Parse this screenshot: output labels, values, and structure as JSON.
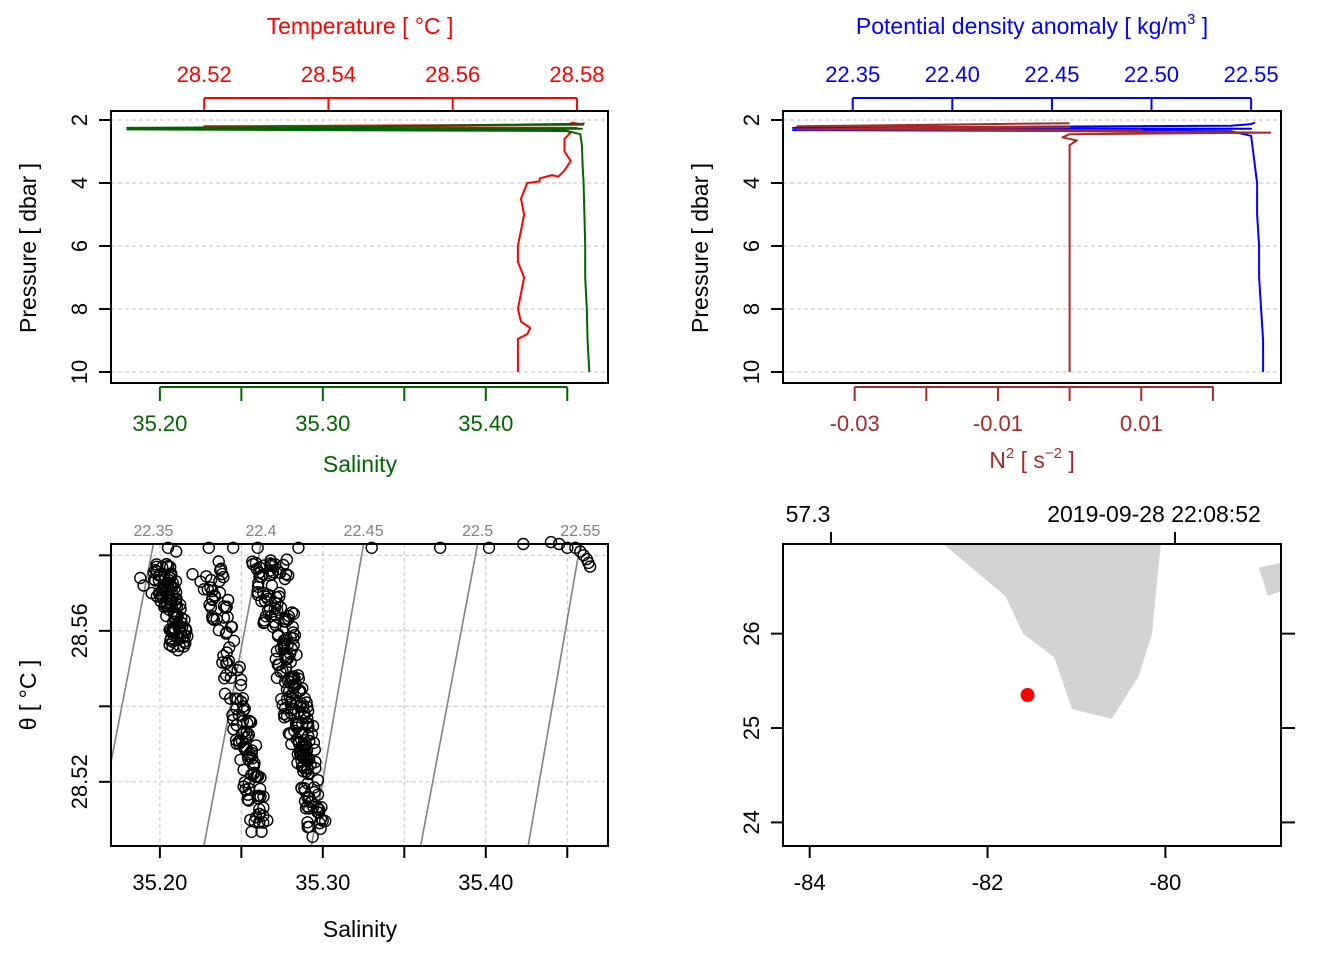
{
  "colors": {
    "temperature": "#ff0000",
    "salinity": "#006400",
    "density": "#0000ff",
    "n2": "#a52a2a",
    "land": "#d3d3d3",
    "station": "#ff0000",
    "isopycnal": "#808080",
    "grid": "#cccccc"
  },
  "panels": {
    "ts_profile": {
      "title": "Temperature [ °C ]",
      "xlabel_bottom": "Salinity",
      "ylabel": "Pressure [ dbar ]"
    },
    "density_profile": {
      "title_main": "Potential density anomaly [ kg/m",
      "title_sup": "3",
      "title_end": " ]",
      "xlabel_bottom_main": "N",
      "xlabel_bottom_sup1": "2",
      "xlabel_bottom_mid": " [ s",
      "xlabel_bottom_sup2": "−2",
      "xlabel_bottom_end": " ]",
      "ylabel": "Pressure [ dbar ]"
    },
    "ts_diagram": {
      "xlabel": "Salinity",
      "ylabel": "θ [ °C ]"
    },
    "map": {
      "top_left_label": "57.3",
      "top_right_label": "2019-09-28 22:08:52"
    }
  },
  "chart_data": [
    {
      "type": "line",
      "name": "profile-temperature-salinity",
      "top_axis": {
        "label": "Temperature [ °C ]",
        "range": [
          28.505,
          28.585
        ],
        "ticks": [
          28.52,
          28.54,
          28.56,
          28.58
        ]
      },
      "bottom_axis": {
        "label": "Salinity",
        "range": [
          35.17,
          35.475
        ],
        "ticks": [
          35.2,
          35.25,
          35.3,
          35.35,
          35.4,
          35.45
        ],
        "tick_labels": [
          "35.20",
          "",
          "35.30",
          "",
          "35.40",
          ""
        ]
      },
      "y_axis": {
        "label": "Pressure [ dbar ]",
        "range": [
          10,
          2
        ],
        "ticks": [
          2,
          4,
          6,
          8,
          10
        ],
        "reversed": true
      },
      "grid": true,
      "series": [
        {
          "color": "#ff0000",
          "x_axis": "top",
          "points": [
            [
              28.579,
              2.08
            ],
            [
              28.581,
              2.15
            ],
            [
              28.52,
              2.2
            ],
            [
              28.58,
              2.25
            ],
            [
              28.515,
              2.28
            ],
            [
              28.578,
              2.32
            ],
            [
              28.579,
              2.4
            ],
            [
              28.578,
              2.6
            ],
            [
              28.578,
              3.0
            ],
            [
              28.579,
              3.3
            ],
            [
              28.578,
              3.6
            ],
            [
              28.577,
              3.8
            ],
            [
              28.576,
              3.75
            ],
            [
              28.574,
              3.85
            ],
            [
              28.574,
              3.95
            ],
            [
              28.572,
              4.0
            ],
            [
              28.571,
              4.5
            ],
            [
              28.5715,
              5.0
            ],
            [
              28.571,
              5.5
            ],
            [
              28.5705,
              6.0
            ],
            [
              28.5705,
              6.5
            ],
            [
              28.5715,
              7.0
            ],
            [
              28.571,
              7.5
            ],
            [
              28.5705,
              8.0
            ],
            [
              28.571,
              8.4
            ],
            [
              28.5725,
              8.6
            ],
            [
              28.572,
              8.8
            ],
            [
              28.5705,
              8.95
            ],
            [
              28.5705,
              9.5
            ],
            [
              28.5705,
              10.0
            ]
          ]
        },
        {
          "color": "#006400",
          "x_axis": "bottom",
          "points": [
            [
              35.46,
              2.08
            ],
            [
              35.46,
              2.12
            ],
            [
              35.3,
              2.22
            ],
            [
              35.18,
              2.25
            ],
            [
              35.459,
              2.28
            ],
            [
              35.18,
              2.3
            ],
            [
              35.45,
              2.35
            ],
            [
              35.458,
              2.45
            ],
            [
              35.459,
              2.8
            ],
            [
              35.4595,
              3.5
            ],
            [
              35.46,
              4.0
            ],
            [
              35.4605,
              5.0
            ],
            [
              35.461,
              6.0
            ],
            [
              35.461,
              7.0
            ],
            [
              35.462,
              8.0
            ],
            [
              35.4625,
              9.0
            ],
            [
              35.4635,
              10.0
            ]
          ]
        }
      ]
    },
    {
      "type": "line",
      "name": "profile-density-n2",
      "top_axis": {
        "label": "Potential density anomaly [ kg/m3 ]",
        "range": [
          22.315,
          22.565
        ],
        "ticks": [
          22.35,
          22.4,
          22.45,
          22.5,
          22.55
        ],
        "tick_labels": [
          "22.35",
          "22.40",
          "22.45",
          "22.50",
          "22.55"
        ]
      },
      "bottom_axis": {
        "label": "N2 [ s-2 ]",
        "range": [
          -0.04,
          0.0295
        ],
        "ticks": [
          -0.03,
          -0.02,
          -0.01,
          0.0,
          0.01,
          0.02
        ],
        "tick_labels": [
          "-0.03",
          "",
          "-0.01",
          "",
          "0.01",
          ""
        ]
      },
      "y_axis": {
        "label": "Pressure [ dbar ]",
        "range": [
          10,
          2
        ],
        "ticks": [
          2,
          4,
          6,
          8,
          10
        ],
        "reversed": true
      },
      "grid": true,
      "series": [
        {
          "color": "#0000ff",
          "x_axis": "top",
          "points": [
            [
              22.552,
              2.08
            ],
            [
              22.55,
              2.13
            ],
            [
              22.54,
              2.18
            ],
            [
              22.32,
              2.25
            ],
            [
              22.55,
              2.28
            ],
            [
              22.32,
              2.32
            ],
            [
              22.54,
              2.36
            ],
            [
              22.55,
              2.5
            ],
            [
              22.551,
              3.0
            ],
            [
              22.552,
              3.5
            ],
            [
              22.553,
              4.0
            ],
            [
              22.553,
              5.0
            ],
            [
              22.554,
              6.0
            ],
            [
              22.554,
              7.0
            ],
            [
              22.555,
              8.0
            ],
            [
              22.556,
              9.0
            ],
            [
              22.556,
              10.0
            ]
          ]
        },
        {
          "color": "#a52a2a",
          "x_axis": "bottom",
          "points": [
            [
              0.0,
              2.1
            ],
            [
              -0.038,
              2.2
            ],
            [
              0.0,
              2.23
            ],
            [
              -0.038,
              2.3
            ],
            [
              0.01,
              2.33
            ],
            [
              0.0,
              2.36
            ],
            [
              0.028,
              2.4
            ],
            [
              0.0,
              2.45
            ],
            [
              -0.001,
              2.55
            ],
            [
              0.001,
              2.65
            ],
            [
              0.0,
              2.8
            ],
            [
              0.0,
              4.0
            ],
            [
              0.0,
              6.0
            ],
            [
              0.0,
              8.0
            ],
            [
              0.0,
              10.0
            ]
          ]
        }
      ]
    },
    {
      "type": "scatter",
      "name": "ts-diagram",
      "x_axis": {
        "label": "Salinity",
        "range": [
          35.17,
          35.475
        ],
        "ticks": [
          35.2,
          35.25,
          35.3,
          35.35,
          35.4,
          35.45
        ],
        "tick_labels": [
          "35.20",
          "",
          "35.30",
          "",
          "35.40",
          ""
        ]
      },
      "y_axis": {
        "label": "θ [ °C ]",
        "range": [
          28.503,
          28.583
        ],
        "ticks": [
          28.52,
          28.54,
          28.56,
          28.58
        ],
        "tick_labels": [
          "28.52",
          "",
          "28.56",
          ""
        ]
      },
      "grid": true,
      "isopycnals": [
        {
          "label": "22.35",
          "s_bottom": 35.16,
          "s_top": 35.196
        },
        {
          "label": "22.4",
          "s_bottom": 35.227,
          "s_top": 35.262
        },
        {
          "label": "22.45",
          "s_bottom": 35.293,
          "s_top": 35.325
        },
        {
          "label": "22.5",
          "s_bottom": 35.36,
          "s_top": 35.395
        },
        {
          "label": "22.55",
          "s_bottom": 35.426,
          "s_top": 35.458
        }
      ],
      "clusters": [
        {
          "s_top": 35.2,
          "t_top": 28.578,
          "s_bottom": 35.213,
          "t_bottom": 28.556,
          "count": 110
        },
        {
          "s_top": 35.232,
          "t_top": 28.577,
          "s_bottom": 35.262,
          "t_bottom": 28.508,
          "count": 130
        },
        {
          "s_top": 35.262,
          "t_top": 28.578,
          "s_bottom": 35.298,
          "t_bottom": 28.506,
          "count": 150
        },
        {
          "s_top": 35.272,
          "t_top": 28.578,
          "s_bottom": 35.292,
          "t_bottom": 28.524,
          "count": 90
        }
      ],
      "points": [
        [
          35.205,
          28.582
        ],
        [
          35.21,
          28.581
        ],
        [
          35.23,
          28.582
        ],
        [
          35.245,
          28.582
        ],
        [
          35.26,
          28.582
        ],
        [
          35.285,
          28.582
        ],
        [
          35.33,
          28.582
        ],
        [
          35.372,
          28.582
        ],
        [
          35.402,
          28.582
        ],
        [
          35.423,
          28.583
        ],
        [
          35.44,
          28.5835
        ],
        [
          35.445,
          28.583
        ],
        [
          35.45,
          28.582
        ],
        [
          35.455,
          28.582
        ],
        [
          35.458,
          28.581
        ],
        [
          35.46,
          28.58
        ],
        [
          35.462,
          28.579
        ],
        [
          35.463,
          28.578
        ],
        [
          35.464,
          28.577
        ],
        [
          35.188,
          28.574
        ],
        [
          35.19,
          28.572
        ],
        [
          35.195,
          28.57
        ],
        [
          35.22,
          28.575
        ],
        [
          35.225,
          28.573
        ],
        [
          35.227,
          28.571
        ]
      ]
    },
    {
      "type": "map",
      "name": "station-map",
      "x_axis": {
        "range": [
          -84.3,
          -78.7
        ],
        "ticks": [
          -84,
          -82,
          -80
        ],
        "tick_labels": [
          "-84",
          "-82",
          "-80"
        ]
      },
      "y_axis": {
        "range": [
          23.75,
          26.95
        ],
        "ticks": [
          24,
          25,
          26
        ],
        "tick_labels": [
          "24",
          "25",
          "26"
        ]
      },
      "station": {
        "lon": -81.55,
        "lat": 25.35
      },
      "land": [
        [
          [
            -82.5,
            26.95
          ],
          [
            -80.05,
            26.95
          ],
          [
            -80.1,
            26.5
          ],
          [
            -80.15,
            26.0
          ],
          [
            -80.3,
            25.55
          ],
          [
            -80.6,
            25.1
          ],
          [
            -81.05,
            25.2
          ],
          [
            -81.25,
            25.75
          ],
          [
            -81.6,
            26.0
          ],
          [
            -81.8,
            26.4
          ],
          [
            -82.5,
            26.95
          ]
        ],
        [
          [
            -78.95,
            26.7
          ],
          [
            -78.7,
            26.75
          ],
          [
            -78.7,
            26.45
          ],
          [
            -78.85,
            26.4
          ],
          [
            -78.95,
            26.7
          ]
        ]
      ]
    }
  ]
}
